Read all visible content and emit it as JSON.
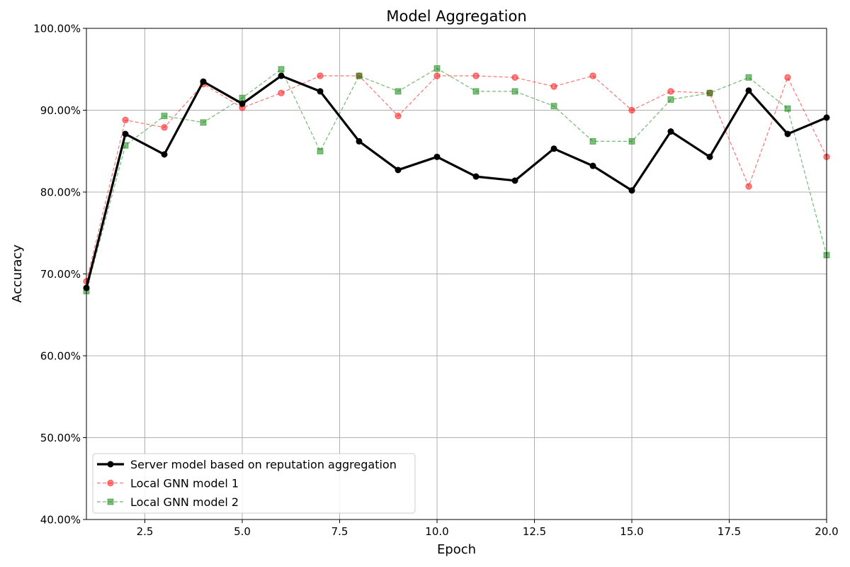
{
  "chart_data": {
    "type": "line",
    "title": "Model Aggregation",
    "xlabel": "Epoch",
    "ylabel": "Accuracy",
    "xlim": [
      1,
      20
    ],
    "ylim": [
      0.4,
      1.0
    ],
    "xticks": [
      2.5,
      5.0,
      7.5,
      10.0,
      12.5,
      15.0,
      17.5,
      20.0
    ],
    "xtick_labels": [
      "2.5",
      "5.0",
      "7.5",
      "10.0",
      "12.5",
      "15.0",
      "17.5",
      "20.0"
    ],
    "yticks": [
      0.4,
      0.5,
      0.6,
      0.7,
      0.8,
      0.9,
      1.0
    ],
    "ytick_labels": [
      "40.00%",
      "50.00%",
      "60.00%",
      "70.00%",
      "80.00%",
      "90.00%",
      "100.00%"
    ],
    "grid": true,
    "legend_position": "lower-left",
    "x": [
      1,
      2,
      3,
      4,
      5,
      6,
      7,
      8,
      9,
      10,
      11,
      12,
      13,
      14,
      15,
      16,
      17,
      18,
      19,
      20
    ],
    "series": [
      {
        "name": "Server model based on reputation aggregation",
        "color": "#000000",
        "style": "solid-thick",
        "marker": "circle",
        "values": [
          0.683,
          0.871,
          0.846,
          0.935,
          0.908,
          0.942,
          0.923,
          0.862,
          0.827,
          0.843,
          0.819,
          0.814,
          0.853,
          0.832,
          0.802,
          0.874,
          0.843,
          0.924,
          0.871,
          0.891
        ]
      },
      {
        "name": "Local GNN model 1",
        "color": "#ff0000",
        "style": "dashed",
        "marker": "circle",
        "values": [
          0.691,
          0.888,
          0.879,
          0.932,
          0.903,
          0.921,
          0.942,
          0.942,
          0.893,
          0.942,
          0.942,
          0.94,
          0.929,
          0.942,
          0.9,
          0.923,
          0.921,
          0.807,
          0.94,
          0.843
        ]
      },
      {
        "name": "Local GNN model 2",
        "color": "#008000",
        "style": "dashed",
        "marker": "square",
        "values": [
          0.679,
          0.857,
          0.893,
          0.885,
          0.915,
          0.95,
          0.85,
          0.942,
          0.923,
          0.951,
          0.923,
          0.923,
          0.905,
          0.862,
          0.862,
          0.913,
          0.921,
          0.94,
          0.902,
          0.723
        ]
      }
    ]
  }
}
